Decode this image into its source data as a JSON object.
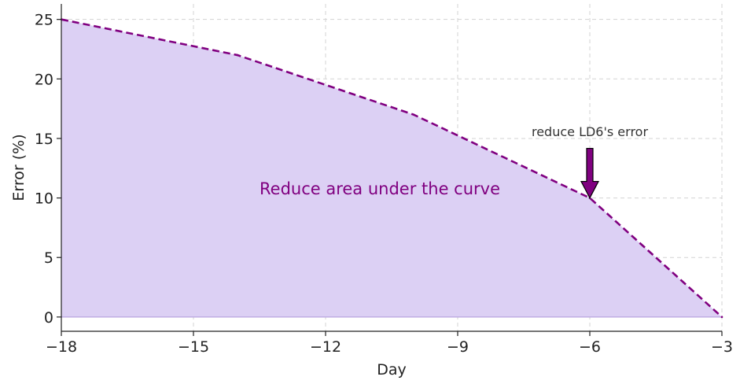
{
  "chart_data": {
    "type": "area",
    "x": [
      -18,
      -14,
      -10,
      -6,
      -3
    ],
    "series": [
      {
        "values": [
          25,
          22,
          17,
          10,
          0
        ]
      }
    ],
    "xlabel": "Day",
    "ylabel": "Error (%)",
    "xlim": [
      -18,
      -3
    ],
    "ylim": [
      -1.2,
      26.3
    ],
    "xticks": [
      -18,
      -15,
      -12,
      -9,
      -6,
      -3
    ],
    "xtick_labels": [
      "−18",
      "−15",
      "−12",
      "−9",
      "−6",
      "−3"
    ],
    "yticks": [
      0,
      5,
      10,
      15,
      20,
      25
    ],
    "ytick_labels": [
      "0",
      "5",
      "10",
      "15",
      "20",
      "25"
    ],
    "grid": true,
    "line_style": "dashed",
    "colors": {
      "line": "#800080",
      "fill": "#dcd0f4",
      "arrow": "#800080",
      "area_text": "#800080"
    },
    "annotations": [
      {
        "text": "Reduce area under the curve",
        "x": -13.5,
        "y": 10.3,
        "kind": "area-label"
      },
      {
        "text": "reduce LD6's error",
        "x": -6,
        "y": 10,
        "text_y": 15.2,
        "kind": "arrow"
      }
    ]
  }
}
